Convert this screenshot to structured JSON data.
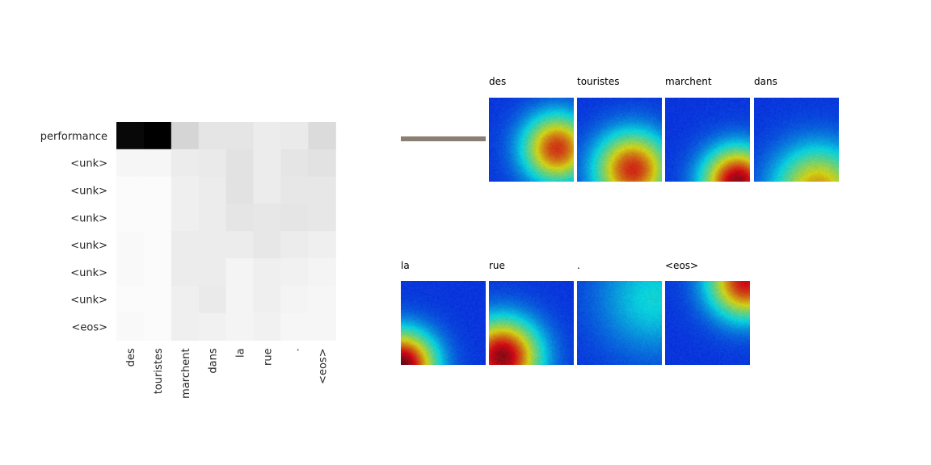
{
  "chart_data": {
    "type": "heatmap",
    "colormap": "greys",
    "y_labels": [
      "performance",
      "<unk>",
      "<unk>",
      "<unk>",
      "<unk>",
      "<unk>",
      "<unk>",
      "<eos>"
    ],
    "x_labels": [
      "des",
      "touristes",
      "marchent",
      "dans",
      "la",
      "rue",
      ".",
      "<eos>"
    ],
    "values": [
      [
        0.97,
        1.0,
        0.15,
        0.09,
        0.09,
        0.06,
        0.07,
        0.13
      ],
      [
        0.02,
        0.02,
        0.06,
        0.07,
        0.1,
        0.06,
        0.09,
        0.1
      ],
      [
        0.0,
        0.0,
        0.05,
        0.06,
        0.1,
        0.06,
        0.08,
        0.08
      ],
      [
        0.0,
        0.0,
        0.05,
        0.06,
        0.09,
        0.08,
        0.09,
        0.08
      ],
      [
        0.01,
        0.0,
        0.06,
        0.06,
        0.06,
        0.08,
        0.06,
        0.05
      ],
      [
        0.01,
        0.0,
        0.06,
        0.06,
        0.03,
        0.05,
        0.04,
        0.03
      ],
      [
        0.0,
        0.0,
        0.05,
        0.07,
        0.03,
        0.05,
        0.03,
        0.02
      ],
      [
        0.01,
        0.0,
        0.05,
        0.04,
        0.03,
        0.04,
        0.02,
        0.02
      ]
    ]
  },
  "accent_bar_color": "#8a7f72",
  "attention_maps": [
    {
      "word": "des",
      "peak": [
        0.8,
        0.6
      ],
      "spread": 0.55,
      "max": 0.78,
      "row": 0,
      "col": 1
    },
    {
      "word": "touristes",
      "peak": [
        0.65,
        0.85
      ],
      "spread": 0.6,
      "max": 0.8,
      "row": 0,
      "col": 2
    },
    {
      "word": "marchent",
      "peak": [
        0.85,
        1.0
      ],
      "spread": 0.55,
      "max": 0.95,
      "row": 0,
      "col": 3
    },
    {
      "word": "dans",
      "peak": [
        0.75,
        1.1
      ],
      "spread": 0.7,
      "max": 0.65,
      "row": 0,
      "col": 4
    },
    {
      "word": "la",
      "peak": [
        0.0,
        1.0
      ],
      "spread": 0.55,
      "max": 1.0,
      "row": 1,
      "col": 0
    },
    {
      "word": "rue",
      "peak": [
        0.15,
        0.9
      ],
      "spread": 0.6,
      "max": 0.95,
      "row": 1,
      "col": 1
    },
    {
      "word": ".",
      "peak": [
        0.9,
        0.2
      ],
      "spread": 0.9,
      "max": 0.25,
      "row": 1,
      "col": 2
    },
    {
      "word": "<eos>",
      "peak": [
        0.95,
        0.0
      ],
      "spread": 0.6,
      "max": 0.85,
      "row": 1,
      "col": 3
    }
  ]
}
